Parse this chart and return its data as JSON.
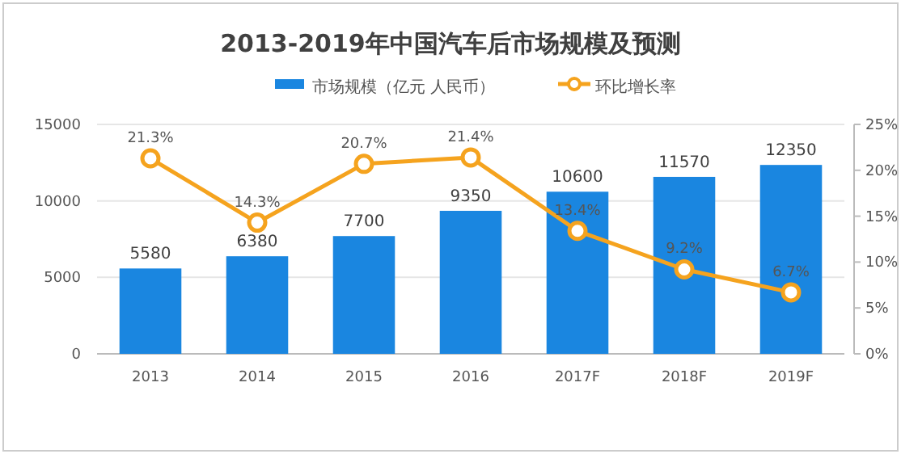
{
  "chart_data": {
    "type": "bar",
    "title": "2013-2019年中国汽车后市场规模及预测",
    "categories": [
      "2013",
      "2014",
      "2015",
      "2016",
      "2017F",
      "2018F",
      "2019F"
    ],
    "series": [
      {
        "name": "市场规模（亿元 人民币）",
        "color": "#1a86e0",
        "values": [
          5580,
          6380,
          7700,
          9350,
          10600,
          11570,
          12350
        ],
        "value_labels": [
          "5580",
          "6380",
          "7700",
          "9350",
          "10600",
          "11570",
          "12350"
        ]
      },
      {
        "name": "环比增长率",
        "type": "line",
        "axis": "y2",
        "color": "#f5a31e",
        "marker": "circle",
        "values": [
          21.3,
          14.3,
          20.7,
          21.4,
          13.4,
          9.2,
          6.7
        ],
        "value_labels": [
          "21.3%",
          "14.3%",
          "20.7%",
          "21.4%",
          "13.4%",
          "9.2%",
          "6.7%"
        ]
      }
    ],
    "ylim": [
      0,
      15000
    ],
    "yticks": [
      0,
      5000,
      10000,
      15000
    ],
    "y2lim": [
      0,
      25
    ],
    "y2ticks": [
      {
        "value": 0,
        "label": "0%"
      },
      {
        "value": 5,
        "label": "5%"
      },
      {
        "value": 10,
        "label": "10%"
      },
      {
        "value": 15,
        "label": "15%"
      },
      {
        "value": 20,
        "label": "20%"
      },
      {
        "value": 25,
        "label": "25%"
      }
    ],
    "grid": "y",
    "legend": "top"
  }
}
